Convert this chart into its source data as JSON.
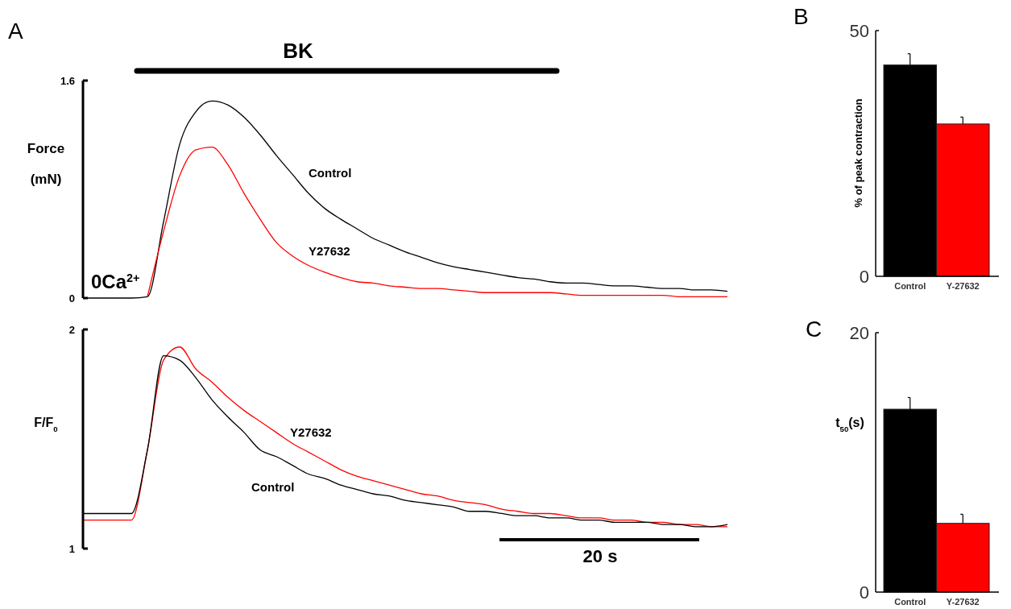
{
  "chart_data": [
    {
      "type": "line",
      "title": "A",
      "ylabel": "Force (mN)",
      "annotations": [
        "BK",
        "0Ca$^{2+}$"
      ],
      "tick_labels": "y",
      "ylim": [
        0,
        1.6
      ],
      "yticks": [
        0,
        1.6
      ],
      "categories": [
        null,
        null,
        null,
        null,
        null,
        null,
        null,
        null,
        null,
        null,
        null,
        null,
        null,
        null,
        null,
        null,
        null,
        null,
        null,
        null,
        null,
        null,
        null,
        null,
        null,
        null,
        null,
        null,
        null,
        null,
        null,
        null,
        null,
        null,
        null,
        null,
        null,
        null,
        null,
        null,
        null
      ],
      "series": [
        {
          "name": "Control",
          "color": "#000000",
          "values": [
            0,
            0,
            0,
            0,
            0.01,
            0.56,
            1.13,
            1.37,
            1.45,
            1.42,
            1.33,
            1.2,
            1.05,
            0.91,
            0.77,
            0.66,
            0.58,
            0.51,
            0.44,
            0.39,
            0.34,
            0.3,
            0.26,
            0.23,
            0.21,
            0.19,
            0.17,
            0.15,
            0.14,
            0.12,
            0.11,
            0.11,
            0.1,
            0.09,
            0.09,
            0.08,
            0.07,
            0.07,
            0.06,
            0.06,
            0.05
          ]
        },
        {
          "name": "Y27632",
          "color": "#ff0000",
          "values": [
            null,
            null,
            null,
            null,
            0.01,
            0.49,
            0.9,
            1.09,
            1.11,
            0.98,
            0.77,
            0.58,
            0.41,
            0.31,
            0.24,
            0.19,
            0.15,
            0.12,
            0.11,
            0.09,
            0.08,
            0.07,
            0.07,
            0.06,
            0.05,
            0.04,
            0.04,
            0.04,
            0.04,
            0.04,
            0.03,
            0.02,
            0.02,
            0.02,
            0.02,
            0.02,
            0.02,
            0.01,
            0.01,
            0.01,
            0.01
          ]
        }
      ]
    },
    {
      "type": "line",
      "ylabel": "F/F$_{0}$",
      "annotations": [
        "20 s"
      ],
      "tick_labels": "y",
      "ylim": [
        1,
        2
      ],
      "yticks": [
        1,
        2
      ],
      "categories": [
        null,
        null,
        null,
        null,
        null,
        null,
        null,
        null,
        null,
        null,
        null,
        null,
        null,
        null,
        null,
        null,
        null,
        null,
        null,
        null,
        null,
        null,
        null,
        null,
        null,
        null,
        null,
        null,
        null,
        null,
        null,
        null,
        null,
        null,
        null,
        null,
        null,
        null,
        null,
        null,
        null
      ],
      "series": [
        {
          "name": "Y27632",
          "color": "#ff0000",
          "values": [
            1.13,
            1.13,
            1.13,
            1.13,
            1.45,
            1.86,
            1.92,
            1.82,
            1.76,
            1.69,
            1.63,
            1.58,
            1.53,
            1.48,
            1.44,
            1.4,
            1.36,
            1.33,
            1.31,
            1.29,
            1.27,
            1.25,
            1.24,
            1.22,
            1.21,
            1.2,
            1.18,
            1.17,
            1.16,
            1.16,
            1.15,
            1.14,
            1.14,
            1.13,
            1.13,
            1.12,
            1.12,
            1.11,
            1.11,
            1.1,
            1.1
          ]
        },
        {
          "name": "Control",
          "color": "#000000",
          "values": [
            1.16,
            1.16,
            1.16,
            1.16,
            1.45,
            1.88,
            1.86,
            1.78,
            1.68,
            1.6,
            1.53,
            1.45,
            1.42,
            1.38,
            1.34,
            1.32,
            1.29,
            1.27,
            1.25,
            1.24,
            1.22,
            1.21,
            1.2,
            1.19,
            1.17,
            1.17,
            1.16,
            1.15,
            1.15,
            1.14,
            1.14,
            1.13,
            1.13,
            1.12,
            1.12,
            1.12,
            1.11,
            1.11,
            1.1,
            1.1,
            1.11
          ]
        }
      ]
    },
    {
      "type": "bar",
      "title": "B",
      "ylabel": "% of peak contraction",
      "categories": [
        "Control",
        "Y-27632"
      ],
      "values": [
        43,
        31
      ],
      "errors": [
        2.3,
        1.4
      ],
      "colors": [
        "#000000",
        "#ff0000"
      ],
      "ylim": [
        0,
        50
      ],
      "yticks": [
        0,
        50
      ]
    },
    {
      "type": "bar",
      "title": "C",
      "ylabel": "t$_{50}$(s)",
      "categories": [
        "Control",
        "Y-27632"
      ],
      "values": [
        14.1,
        5.3
      ],
      "errors": [
        0.9,
        0.7
      ],
      "colors": [
        "#000000",
        "#ff0000"
      ],
      "ylim": [
        0,
        20
      ],
      "yticks": [
        0,
        20
      ]
    }
  ]
}
